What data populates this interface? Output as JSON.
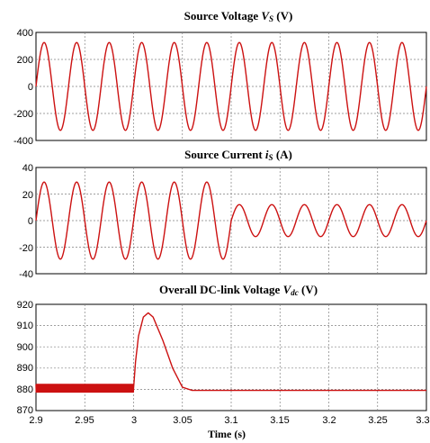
{
  "colors": {
    "trace": "#cc1111"
  },
  "chart_data": [
    {
      "type": "line",
      "title": "Source Voltage Vs (V)",
      "title_parts": {
        "main": "Source Voltage ",
        "sym": "V",
        "sub": "S",
        "unit": " (V)"
      },
      "xlim": [
        2.9,
        3.1
      ],
      "ylim": [
        -400,
        400
      ],
      "yticks": [
        "400",
        "200",
        "0",
        "-200",
        "-400"
      ],
      "ytick_values": [
        400,
        200,
        0,
        -200,
        -400
      ],
      "series": [
        {
          "waveform": "sine",
          "amplitude": 325,
          "frequency_hz": 60,
          "segments": [
            {
              "from": 2.9,
              "to": 3.1,
              "amplitude": 325
            }
          ]
        }
      ]
    },
    {
      "type": "line",
      "title": "Source Current is (A)",
      "title_parts": {
        "main": "Source Current ",
        "sym": "i",
        "sub": "S",
        "unit": " (A)"
      },
      "xlim": [
        2.9,
        3.1
      ],
      "ylim": [
        -40,
        40
      ],
      "yticks": [
        "40",
        "20",
        "0",
        "-20",
        "-40"
      ],
      "ytick_values": [
        40,
        20,
        0,
        -20,
        -40
      ],
      "series": [
        {
          "waveform": "sine",
          "frequency_hz": 60,
          "segments": [
            {
              "from": 2.9,
              "to": 3.0,
              "amplitude": 29
            },
            {
              "from": 3.0,
              "to": 3.1,
              "amplitude": 12
            }
          ]
        }
      ]
    },
    {
      "type": "line",
      "title": "Overall DC-link Voltage Vdc (V)",
      "title_parts": {
        "main": "Overall DC-link Voltage ",
        "sym": "V",
        "sub": "dc",
        "unit": " (V)"
      },
      "xlim": [
        2.9,
        3.1
      ],
      "ylim": [
        870,
        920
      ],
      "yticks": [
        "920",
        "910",
        "900",
        "890",
        "880",
        "870"
      ],
      "ytick_values": [
        920,
        910,
        900,
        890,
        880,
        870
      ],
      "xticks": [
        "2.9",
        "2.95",
        "3",
        "3.05",
        "3.1",
        "3.15",
        "3.2",
        "3.25",
        "3.3"
      ],
      "xtick_values": [
        2.9,
        2.95,
        3.0,
        3.05,
        3.1,
        3.15,
        3.2,
        3.25,
        3.3
      ],
      "xlabel": "Time (s)",
      "series": [
        {
          "points": [
            [
              2.9,
              880.5
            ],
            [
              3.0,
              880.5
            ],
            [
              3.002,
              893
            ],
            [
              3.005,
              905
            ],
            [
              3.01,
              914
            ],
            [
              3.015,
              916
            ],
            [
              3.02,
              914
            ],
            [
              3.03,
              903
            ],
            [
              3.04,
              890
            ],
            [
              3.05,
              881
            ],
            [
              3.06,
              879.5
            ],
            [
              3.1,
              879.5
            ]
          ],
          "ripple_before": 3.0,
          "ripple_amplitude": 1.8
        }
      ]
    }
  ]
}
